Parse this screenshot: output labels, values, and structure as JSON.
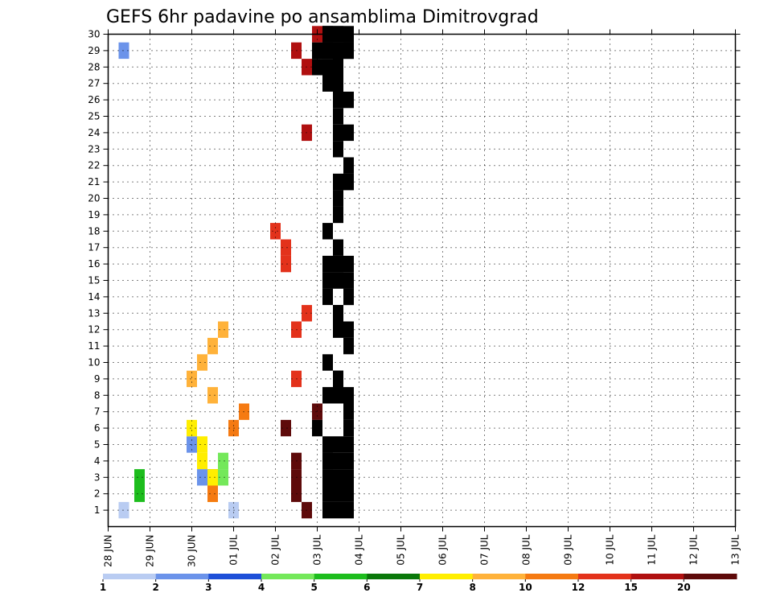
{
  "chart_data": {
    "type": "heatmap",
    "title": "GEFS 6hr padavine po ansamblima Dimitrovgrad",
    "xlabel": "",
    "ylabel": "",
    "x_ticks": [
      "28 JUN",
      "29 JUN",
      "30 JUN",
      "01 JUL",
      "02 JUL",
      "03 JUL",
      "04 JUL",
      "05 JUL",
      "06 JUL",
      "07 JUL",
      "08 JUL",
      "09 JUL",
      "10 JUL",
      "11 JUL",
      "12 JUL",
      "13 JUL"
    ],
    "y_ticks": [
      "1",
      "2",
      "3",
      "4",
      "5",
      "6",
      "7",
      "8",
      "9",
      "10",
      "11",
      "12",
      "13",
      "14",
      "15",
      "16",
      "17",
      "18",
      "19",
      "20",
      "21",
      "22",
      "23",
      "24",
      "25",
      "26",
      "27",
      "28",
      "29",
      "30"
    ],
    "time_steps_per_day": 4,
    "x_range": [
      0,
      60
    ],
    "y_range": [
      0,
      30
    ],
    "grid": true,
    "colorbar": {
      "ticks": [
        "1",
        "2",
        "3",
        "4",
        "5",
        "6",
        "7",
        "8",
        "10",
        "12",
        "15",
        "20"
      ],
      "colors": [
        "#b9ccf2",
        "#6b93ea",
        "#1e4fd8",
        "#74e85a",
        "#1dbd1d",
        "#0a780a",
        "#ffee00",
        "#ffb23a",
        "#f57a12",
        "#e3321b",
        "#b01010",
        "#5e0a0a"
      ]
    },
    "cells": [
      [
        1.5,
        1,
        1
      ],
      [
        12,
        1,
        1
      ],
      [
        1.5,
        2,
        29
      ],
      [
        8,
        2,
        5
      ],
      [
        9,
        2,
        3
      ],
      [
        11,
        4,
        3
      ],
      [
        11,
        4,
        4
      ],
      [
        3,
        5,
        3
      ],
      [
        3,
        5,
        2
      ],
      [
        10,
        6,
        3
      ],
      [
        10,
        7,
        2
      ],
      [
        10,
        7,
        3
      ],
      [
        9,
        7,
        4
      ],
      [
        9,
        7,
        5
      ],
      [
        8,
        7,
        6
      ],
      [
        10,
        9,
        2
      ],
      [
        10,
        8,
        8
      ],
      [
        8,
        8,
        9
      ],
      [
        9,
        8,
        10
      ],
      [
        10,
        8,
        11
      ],
      [
        11,
        8,
        12
      ],
      [
        13,
        9,
        7
      ],
      [
        12,
        9,
        6
      ],
      [
        18,
        10,
        9
      ],
      [
        18,
        10,
        12
      ],
      [
        17,
        10,
        16
      ],
      [
        19,
        10,
        13
      ],
      [
        17,
        10,
        17
      ],
      [
        16,
        10,
        18
      ],
      [
        19,
        11,
        24
      ],
      [
        19,
        11,
        28
      ],
      [
        18,
        11,
        29
      ],
      [
        20,
        11,
        30
      ],
      [
        19,
        12,
        1
      ],
      [
        18,
        12,
        2
      ],
      [
        18,
        12,
        3
      ],
      [
        18,
        12,
        4
      ],
      [
        17,
        12,
        6
      ],
      [
        20,
        12,
        7
      ],
      [
        21,
        13,
        5
      ],
      [
        20,
        13,
        6
      ],
      [
        21,
        13,
        8
      ],
      [
        22,
        13,
        9
      ],
      [
        23,
        14,
        2
      ],
      [
        23,
        15,
        4
      ],
      [
        23,
        15,
        5
      ],
      [
        23,
        15,
        14
      ],
      [
        23,
        15,
        15
      ],
      [
        23,
        17,
        1
      ],
      [
        22,
        17,
        2
      ],
      [
        21,
        17,
        15
      ],
      [
        21,
        17,
        18
      ],
      [
        22,
        18,
        3
      ],
      [
        22,
        18,
        8
      ],
      [
        22,
        18,
        19
      ],
      [
        23,
        18,
        21
      ],
      [
        23,
        18,
        22
      ],
      [
        22,
        18,
        23
      ],
      [
        22,
        18,
        24
      ],
      [
        23,
        19,
        11
      ],
      [
        22,
        19,
        12
      ],
      [
        22,
        19,
        13
      ],
      [
        23,
        19,
        14
      ],
      [
        22,
        19,
        15
      ],
      [
        22,
        19,
        16
      ],
      [
        23,
        19,
        29
      ],
      [
        22,
        19,
        30
      ],
      [
        21,
        20,
        1
      ],
      [
        23,
        20,
        3
      ],
      [
        21,
        20,
        4
      ],
      [
        22,
        20,
        8
      ],
      [
        21,
        20,
        14
      ],
      [
        21,
        20,
        15
      ],
      [
        21,
        20,
        16
      ],
      [
        23,
        20,
        21
      ],
      [
        23,
        20,
        26
      ],
      [
        22,
        20,
        28
      ],
      [
        22,
        21,
        4
      ],
      [
        23,
        21,
        6
      ],
      [
        23,
        21,
        7
      ],
      [
        23,
        21,
        8
      ],
      [
        22,
        21,
        9
      ],
      [
        23,
        21,
        12
      ],
      [
        22,
        23,
        29
      ],
      [
        22,
        23,
        30
      ],
      [
        21,
        23,
        28
      ],
      [
        21,
        24,
        29
      ],
      [
        21,
        24,
        30
      ],
      [
        22,
        24,
        28
      ],
      [
        22,
        24,
        1
      ],
      [
        21,
        25,
        2
      ],
      [
        21,
        25,
        3
      ],
      [
        21,
        25,
        4
      ],
      [
        22,
        25,
        5
      ],
      [
        21,
        25,
        10
      ],
      [
        22,
        25,
        27
      ],
      [
        22,
        25,
        28
      ],
      [
        21,
        25,
        29
      ],
      [
        21,
        25,
        30
      ],
      [
        22,
        26,
        19
      ],
      [
        22,
        26,
        20
      ],
      [
        22,
        26,
        21
      ],
      [
        23,
        26,
        29
      ],
      [
        22,
        27,
        9
      ],
      [
        22,
        27,
        13
      ],
      [
        22,
        27,
        15
      ],
      [
        23,
        27,
        16
      ],
      [
        22,
        27,
        17
      ],
      [
        22,
        28,
        21
      ],
      [
        22,
        28,
        27
      ],
      [
        22,
        28,
        28
      ],
      [
        23,
        28,
        29
      ],
      [
        23,
        29,
        24
      ],
      [
        22,
        29,
        25
      ],
      [
        22,
        29,
        26
      ],
      [
        22,
        29,
        27
      ],
      [
        22,
        29,
        29
      ],
      [
        23,
        29,
        30
      ],
      [
        21,
        29,
        30
      ],
      [
        20,
        29,
        29
      ],
      [
        20,
        29,
        28
      ],
      [
        21,
        29,
        27
      ]
    ]
  }
}
